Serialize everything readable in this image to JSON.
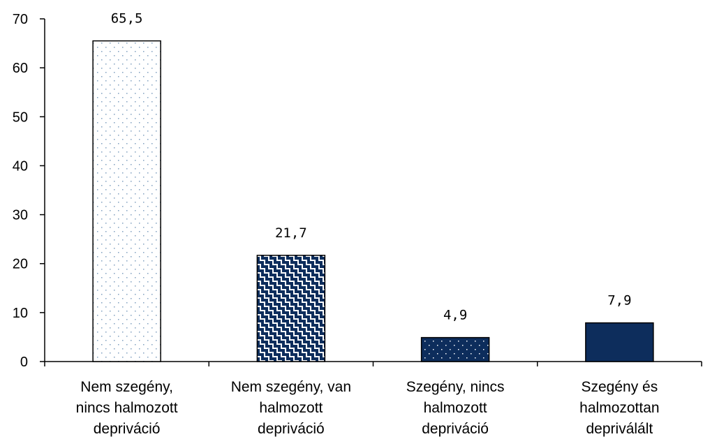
{
  "chart_data": {
    "type": "bar",
    "title": "",
    "xlabel": "",
    "ylabel": "",
    "ylim": [
      0,
      70
    ],
    "yticks": [
      0,
      10,
      20,
      30,
      40,
      50,
      60,
      70
    ],
    "categories": [
      "Nem szegény,\nnincs halmozott\ndepriváció",
      "Nem szegény, van\nhalmozott\ndepriváció",
      "Szegény, nincs\nhalmozott\ndepriváció",
      "Szegény és\nhalmozottan\ndepriválált"
    ],
    "values": [
      65.5,
      21.7,
      4.9,
      7.9
    ],
    "value_labels": [
      "65,5",
      "21,7",
      "4,9",
      "7,9"
    ],
    "bar_styles": [
      "dotted-light",
      "checker-navy",
      "dotted-navy",
      "solid-navy"
    ],
    "colors": {
      "navy": "#0d2d5c",
      "dot_light": "#7f9fbf",
      "axis": "#000000"
    },
    "grid": false,
    "legend": "none"
  }
}
